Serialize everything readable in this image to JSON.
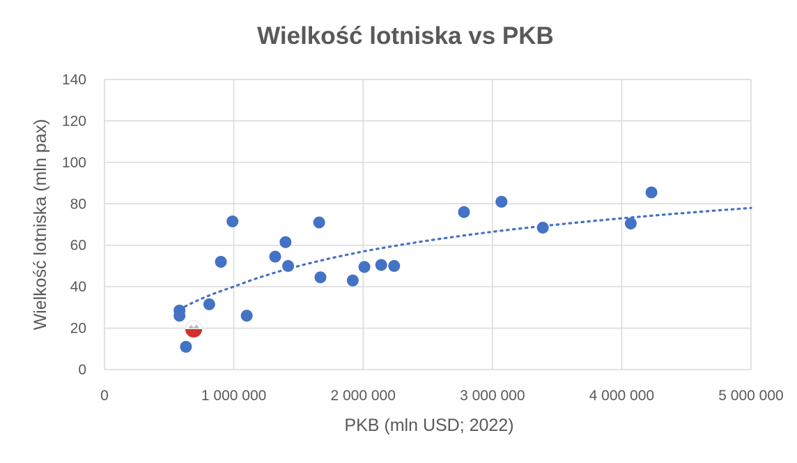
{
  "chart_data": {
    "type": "scatter",
    "title": "Wielkość lotniska vs PKB",
    "xlabel": "PKB (mln USD; 2022)",
    "ylabel": "Wielkość lotniska (mln pax)",
    "xlim": [
      0,
      5000000
    ],
    "ylim": [
      0,
      140
    ],
    "xticks": [
      0,
      1000000,
      2000000,
      3000000,
      4000000,
      5000000
    ],
    "xtick_labels": [
      "0",
      "1 000 000",
      "2 000 000",
      "3 000 000",
      "4 000 000",
      "5 000 000"
    ],
    "yticks": [
      0,
      20,
      40,
      60,
      80,
      100,
      120,
      140
    ],
    "ytick_labels": [
      "0",
      "20",
      "40",
      "60",
      "80",
      "100",
      "120",
      "140"
    ],
    "grid": true,
    "legend": "none",
    "point_color": "#4472c4",
    "highlight_color": "#d32f2f",
    "points": [
      {
        "x": 580000,
        "y": 28.5
      },
      {
        "x": 580000,
        "y": 26
      },
      {
        "x": 630000,
        "y": 11
      },
      {
        "x": 810000,
        "y": 31.5
      },
      {
        "x": 900000,
        "y": 52
      },
      {
        "x": 990000,
        "y": 71.5
      },
      {
        "x": 1100000,
        "y": 26
      },
      {
        "x": 1320000,
        "y": 54.5
      },
      {
        "x": 1400000,
        "y": 61.5
      },
      {
        "x": 1420000,
        "y": 50
      },
      {
        "x": 1660000,
        "y": 71
      },
      {
        "x": 1670000,
        "y": 44.5
      },
      {
        "x": 1920000,
        "y": 43
      },
      {
        "x": 2010000,
        "y": 49.5
      },
      {
        "x": 2140000,
        "y": 50.5
      },
      {
        "x": 2240000,
        "y": 50
      },
      {
        "x": 2780000,
        "y": 76
      },
      {
        "x": 3070000,
        "y": 81
      },
      {
        "x": 3390000,
        "y": 68.5
      },
      {
        "x": 4070000,
        "y": 70.5
      },
      {
        "x": 4230000,
        "y": 85.5
      }
    ],
    "highlight_point": {
      "x": 690000,
      "y": 19.5
    },
    "trendline": {
      "type": "logarithmic",
      "color": "#4472c4",
      "points": [
        {
          "x": 580000,
          "y": 29
        },
        {
          "x": 1000000,
          "y": 40
        },
        {
          "x": 2000000,
          "y": 57
        },
        {
          "x": 3000000,
          "y": 66.5
        },
        {
          "x": 4000000,
          "y": 73
        },
        {
          "x": 5000000,
          "y": 78
        }
      ]
    }
  }
}
